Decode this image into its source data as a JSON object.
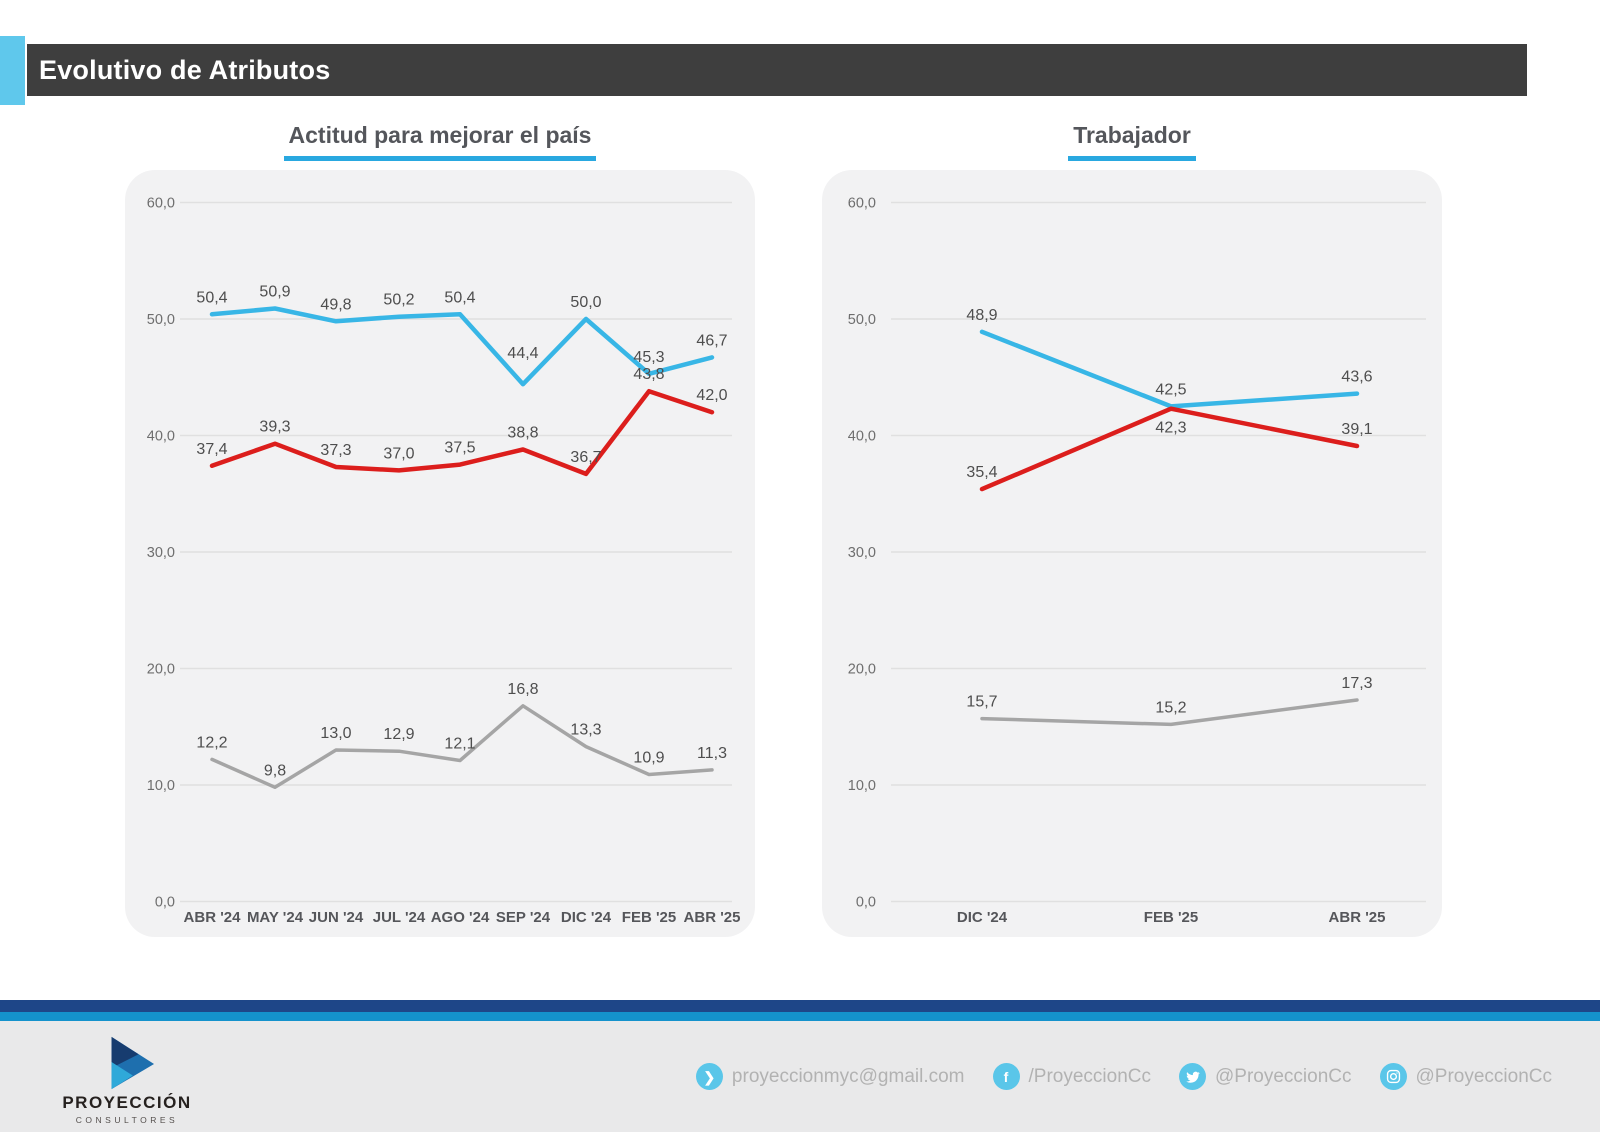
{
  "header": {
    "title": "Evolutivo de Atributos"
  },
  "colors": {
    "accent_cyan": "#5FC8EC",
    "title_underline": "#29A8E0",
    "header_bar": "#3E3E3E",
    "panel_bg": "#F2F2F3",
    "grid": "#E0E0E0",
    "tick_text": "#6E6E6E",
    "xlabel_text": "#55565A",
    "value_label_text": "#4E4E4E",
    "footer_navy": "#1E4688",
    "footer_cyan": "#1492CC",
    "footer_bg": "#E9E9EA",
    "social_icon": "#5AC6E9",
    "social_text": "#B2B2B2"
  },
  "chart_data": [
    {
      "type": "line",
      "title": "Actitud para mejorar el país",
      "categories": [
        "ABR '24",
        "MAY '24",
        "JUN '24",
        "JUL '24",
        "AGO '24",
        "SEP '24",
        "DIC '24",
        "FEB '25",
        "ABR '25"
      ],
      "series": [
        {
          "name": "blue",
          "color": "#38B6E6",
          "stroke_width": 4.5,
          "values": [
            50.4,
            50.9,
            49.8,
            50.2,
            50.4,
            44.4,
            50.0,
            45.3,
            46.7
          ],
          "label_offsets": {
            "5": -26
          }
        },
        {
          "name": "red",
          "color": "#DC1E1C",
          "stroke_width": 4.5,
          "values": [
            37.4,
            39.3,
            37.3,
            37.0,
            37.5,
            38.8,
            36.7,
            43.8,
            42.0
          ]
        },
        {
          "name": "gray",
          "color": "#A5A5A5",
          "stroke_width": 3.5,
          "values": [
            12.2,
            9.8,
            13.0,
            12.9,
            12.1,
            16.8,
            13.3,
            10.9,
            11.3
          ]
        }
      ],
      "ylim": [
        0,
        60
      ],
      "ytick_step": 10,
      "ytick_labels": [
        "0,0",
        "10,0",
        "20,0",
        "30,0",
        "40,0",
        "50,0",
        "60,0"
      ],
      "grid": true,
      "legend": "none",
      "decimal_separator": ","
    },
    {
      "type": "line",
      "title": "Trabajador",
      "categories": [
        "DIC '24",
        "FEB '25",
        "ABR '25"
      ],
      "series": [
        {
          "name": "blue",
          "color": "#38B6E6",
          "stroke_width": 4.5,
          "values": [
            48.9,
            42.5,
            43.6
          ]
        },
        {
          "name": "red",
          "color": "#DC1E1C",
          "stroke_width": 4.5,
          "values": [
            35.4,
            42.3,
            39.1
          ],
          "label_below": [
            1
          ]
        },
        {
          "name": "gray",
          "color": "#A5A5A5",
          "stroke_width": 3.5,
          "values": [
            15.7,
            15.2,
            17.3
          ]
        }
      ],
      "ylim": [
        0,
        60
      ],
      "ytick_step": 10,
      "ytick_labels": [
        "0,0",
        "10,0",
        "20,0",
        "30,0",
        "40,0",
        "50,0",
        "60,0"
      ],
      "grid": true,
      "legend": "none",
      "decimal_separator": ","
    }
  ],
  "footer": {
    "logo": {
      "brand": "PROYECCIÓN",
      "sub": "CONSULTORES"
    },
    "social": [
      {
        "icon": "email-icon",
        "text": "proyeccionmyc@gmail.com"
      },
      {
        "icon": "facebook-icon",
        "text": "/ProyeccionCc"
      },
      {
        "icon": "twitter-icon",
        "text": "@ProyeccionCc"
      },
      {
        "icon": "instagram-icon",
        "text": "@ProyeccionCc"
      }
    ]
  }
}
